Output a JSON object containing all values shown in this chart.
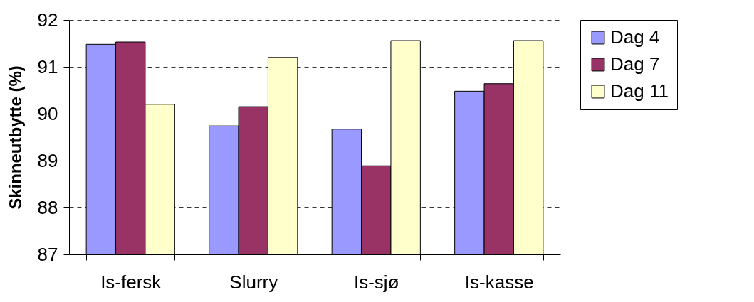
{
  "chart_data": {
    "type": "bar",
    "ylabel": "Skinneutbytte (%)",
    "categories": [
      "Is-fersk",
      "Slurry",
      "Is-sjø",
      "Is-kasse"
    ],
    "series": [
      {
        "name": "Dag 4",
        "color": "#9999ff",
        "values": [
          91.48,
          89.74,
          89.67,
          90.48
        ]
      },
      {
        "name": "Dag 7",
        "color": "#993366",
        "values": [
          91.53,
          90.15,
          88.89,
          90.64
        ]
      },
      {
        "name": "Dag 11",
        "color": "#ffffcc",
        "values": [
          90.2,
          91.2,
          91.56,
          91.56
        ]
      }
    ],
    "ylim": [
      87,
      92
    ],
    "yticks": [
      87,
      88,
      89,
      90,
      91,
      92
    ],
    "grid": "y",
    "legend": "right"
  }
}
